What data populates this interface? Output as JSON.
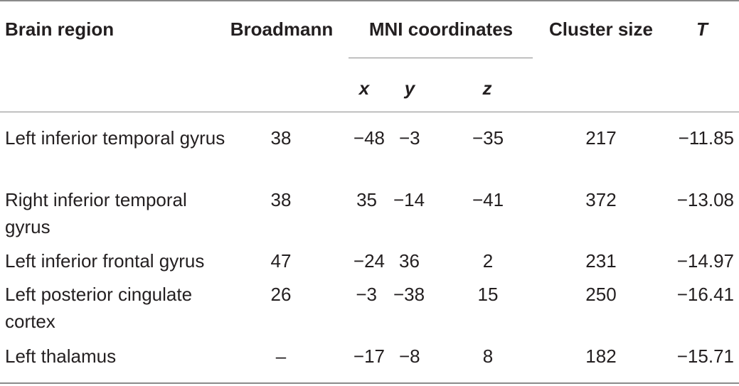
{
  "header": {
    "brain_region": "Brain region",
    "broadmann": "Broadmann",
    "mni": "MNI coordinates",
    "cluster_size": "Cluster size",
    "t": "T",
    "x": "x",
    "y": "y",
    "z": "z"
  },
  "rows": [
    {
      "region": "Left inferior temporal gyrus",
      "broadmann": "38",
      "x": "−48",
      "y": "−3",
      "z": "−35",
      "cluster": "217",
      "t": "−11.85"
    },
    {
      "region": "Right inferior temporal gyrus",
      "broadmann": "38",
      "x": "35",
      "y": "−14",
      "z": "−41",
      "cluster": "372",
      "t": "−13.08"
    },
    {
      "region": "Left inferior frontal gyrus",
      "broadmann": "47",
      "x": "−24",
      "y": "36",
      "z": "2",
      "cluster": "231",
      "t": "−14.97"
    },
    {
      "region": "Left posterior cingulate cortex",
      "broadmann": "26",
      "x": "−3",
      "y": "−38",
      "z": "15",
      "cluster": "250",
      "t": "−16.41"
    },
    {
      "region": "Left thalamus",
      "broadmann": "–",
      "x": "−17",
      "y": "−8",
      "z": "8",
      "cluster": "182",
      "t": "−15.71"
    }
  ]
}
